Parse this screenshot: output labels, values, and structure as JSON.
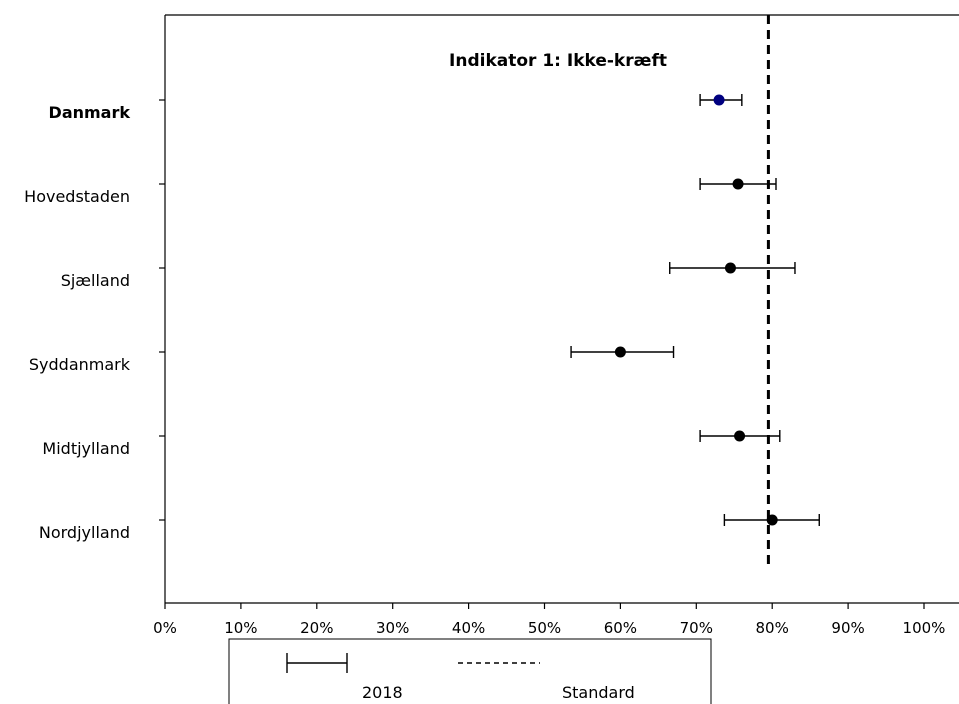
{
  "chart_data": {
    "type": "scatter",
    "title": "Indikator 1: Ikke-kræft",
    "xlabel": "",
    "ylabel": "",
    "xlim": [
      0,
      1
    ],
    "x_ticks": [
      "0%",
      "10%",
      "20%",
      "30%",
      "40%",
      "50%",
      "60%",
      "70%",
      "80%",
      "90%",
      "100%"
    ],
    "standard": 0.795,
    "standard_label": "Standard",
    "series_name": "2018",
    "grid": false,
    "legend_position": "bottom",
    "colors": {
      "national_point": "#000080",
      "region_point": "#000000",
      "error_bar": "#000000",
      "standard_line": "#000000"
    },
    "categories": [
      "Danmark",
      "Hovedstaden",
      "Sjælland",
      "Syddanmark",
      "Midtjylland",
      "Nordjylland"
    ],
    "emphasized": [
      "Danmark"
    ],
    "points": [
      {
        "label": "Danmark",
        "value": 0.73,
        "lower": 0.705,
        "upper": 0.76
      },
      {
        "label": "Hovedstaden",
        "value": 0.755,
        "lower": 0.705,
        "upper": 0.805
      },
      {
        "label": "Sjælland",
        "value": 0.745,
        "lower": 0.665,
        "upper": 0.83
      },
      {
        "label": "Syddanmark",
        "value": 0.6,
        "lower": 0.535,
        "upper": 0.67
      },
      {
        "label": "Midtjylland",
        "value": 0.757,
        "lower": 0.705,
        "upper": 0.81
      },
      {
        "label": "Nordjylland",
        "value": 0.8,
        "lower": 0.737,
        "upper": 0.862
      }
    ]
  }
}
